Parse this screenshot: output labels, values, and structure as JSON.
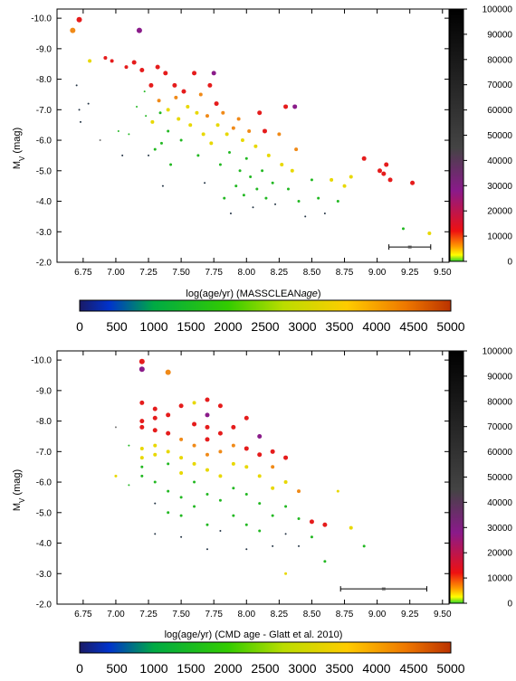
{
  "chart_data": [
    {
      "type": "scatter",
      "xlabel": "log(age/yr) (MASSCLEAN",
      "xlabel_italic": "age",
      "xlabel_close": ")",
      "ylabel": "M",
      "ylabel_sub": "V",
      "ylabel_unit": " (mag)",
      "xlim": [
        6.55,
        9.55
      ],
      "ylim": [
        -2.0,
        -10.3
      ],
      "xticks": [
        "6.75",
        "7.00",
        "7.25",
        "7.50",
        "7.75",
        "8.00",
        "8.25",
        "8.50",
        "8.75",
        "9.00",
        "9.25",
        "9.50"
      ],
      "yticks": [
        "-10.0",
        "-9.0",
        "-8.0",
        "-7.0",
        "-6.0",
        "-5.0",
        "-4.0",
        "-3.0",
        "-2.0"
      ],
      "vertical_colorbar": {
        "range": [
          0,
          100000
        ],
        "ticks": [
          "100000",
          "90000",
          "80000",
          "70000",
          "60000",
          "50000",
          "40000",
          "30000",
          "20000",
          "10000",
          "0"
        ]
      },
      "horizontal_colorbar": {
        "range": [
          0,
          5000
        ],
        "ticks": [
          "0",
          "500",
          "1000",
          "1500",
          "2000",
          "2500",
          "3000",
          "3500",
          "4000",
          "4500",
          "5000"
        ]
      },
      "error_bar": {
        "x": 9.25,
        "y": -2.5,
        "xerr": 0.16
      },
      "points": [
        [
          6.67,
          -9.6,
          "orange",
          3
        ],
        [
          6.72,
          -9.95,
          "red",
          3
        ],
        [
          6.7,
          -7.8,
          "dark",
          1
        ],
        [
          6.72,
          -7.0,
          "dark",
          1
        ],
        [
          6.73,
          -6.6,
          "dark",
          1
        ],
        [
          6.79,
          -7.2,
          "dark",
          1
        ],
        [
          6.8,
          -8.6,
          "yellow",
          2
        ],
        [
          6.88,
          -6.0,
          "gray",
          1
        ],
        [
          6.92,
          -8.7,
          "red",
          2
        ],
        [
          6.97,
          -8.6,
          "red",
          2
        ],
        [
          7.02,
          -6.3,
          "green",
          1
        ],
        [
          7.05,
          -5.5,
          "dark",
          1
        ],
        [
          7.08,
          -8.4,
          "red",
          2
        ],
        [
          7.1,
          -6.2,
          "green",
          1
        ],
        [
          7.14,
          -8.55,
          "red",
          2.5
        ],
        [
          7.16,
          -7.1,
          "green",
          1
        ],
        [
          7.18,
          -9.6,
          "purple",
          3
        ],
        [
          7.2,
          -8.3,
          "red",
          2.5
        ],
        [
          7.22,
          -7.6,
          "green",
          1
        ],
        [
          7.23,
          -6.8,
          "green",
          1
        ],
        [
          7.25,
          -5.5,
          "dark",
          1
        ],
        [
          7.27,
          -7.8,
          "red",
          2.5
        ],
        [
          7.28,
          -6.6,
          "yellow",
          2
        ],
        [
          7.3,
          -5.7,
          "green",
          1.5
        ],
        [
          7.32,
          -8.4,
          "red",
          2.5
        ],
        [
          7.33,
          -7.3,
          "orange",
          2
        ],
        [
          7.34,
          -6.9,
          "green",
          1.5
        ],
        [
          7.35,
          -5.9,
          "green",
          1.5
        ],
        [
          7.36,
          -4.5,
          "dark",
          1
        ],
        [
          7.38,
          -8.2,
          "red",
          2.5
        ],
        [
          7.4,
          -7.0,
          "yellow",
          2
        ],
        [
          7.4,
          -6.3,
          "green",
          1.5
        ],
        [
          7.42,
          -5.2,
          "green",
          1.5
        ],
        [
          7.45,
          -7.8,
          "red",
          2.5
        ],
        [
          7.46,
          -7.4,
          "orange",
          2
        ],
        [
          7.48,
          -6.7,
          "yellow",
          2
        ],
        [
          7.5,
          -6.0,
          "green",
          1.5
        ],
        [
          7.52,
          -7.6,
          "red",
          2.5
        ],
        [
          7.55,
          -7.1,
          "yellow",
          2
        ],
        [
          7.57,
          -6.5,
          "yellow",
          2
        ],
        [
          7.6,
          -8.2,
          "red",
          2.5
        ],
        [
          7.62,
          -6.9,
          "yellow",
          2
        ],
        [
          7.63,
          -5.5,
          "green",
          1.5
        ],
        [
          7.65,
          -7.5,
          "orange",
          2
        ],
        [
          7.67,
          -6.2,
          "yellow",
          2
        ],
        [
          7.68,
          -4.6,
          "dark",
          1
        ],
        [
          7.7,
          -6.8,
          "orange",
          2
        ],
        [
          7.72,
          -7.8,
          "red",
          2.5
        ],
        [
          7.73,
          -5.9,
          "yellow",
          2
        ],
        [
          7.75,
          -8.2,
          "purple",
          2.5
        ],
        [
          7.77,
          -7.2,
          "red",
          2.5
        ],
        [
          7.78,
          -6.5,
          "yellow",
          2
        ],
        [
          7.8,
          -5.2,
          "green",
          1.5
        ],
        [
          7.82,
          -6.9,
          "orange",
          2
        ],
        [
          7.83,
          -4.1,
          "green",
          1.5
        ],
        [
          7.85,
          -6.2,
          "yellow",
          2
        ],
        [
          7.87,
          -5.6,
          "green",
          1.5
        ],
        [
          7.88,
          -3.6,
          "dark",
          1
        ],
        [
          7.9,
          -6.4,
          "orange",
          2
        ],
        [
          7.92,
          -4.5,
          "green",
          1.5
        ],
        [
          7.94,
          -6.7,
          "orange",
          2
        ],
        [
          7.95,
          -5.0,
          "green",
          1.5
        ],
        [
          7.97,
          -6.0,
          "yellow",
          2
        ],
        [
          7.98,
          -4.2,
          "green",
          1.5
        ],
        [
          8.0,
          -5.4,
          "green",
          1.5
        ],
        [
          8.02,
          -6.3,
          "orange",
          2
        ],
        [
          8.03,
          -4.8,
          "green",
          1.5
        ],
        [
          8.05,
          -3.8,
          "dark",
          1
        ],
        [
          8.07,
          -5.8,
          "yellow",
          2
        ],
        [
          8.08,
          -4.4,
          "green",
          1.5
        ],
        [
          8.1,
          -6.9,
          "red",
          2.5
        ],
        [
          8.12,
          -5.0,
          "green",
          1.5
        ],
        [
          8.14,
          -6.3,
          "red",
          2.5
        ],
        [
          8.15,
          -4.1,
          "green",
          1.5
        ],
        [
          8.17,
          -5.5,
          "yellow",
          2
        ],
        [
          8.2,
          -4.6,
          "green",
          1.5
        ],
        [
          8.22,
          -3.9,
          "dark",
          1
        ],
        [
          8.25,
          -6.2,
          "orange",
          2
        ],
        [
          8.27,
          -5.2,
          "yellow",
          2
        ],
        [
          8.3,
          -7.1,
          "red",
          2.5
        ],
        [
          8.32,
          -4.4,
          "green",
          1.5
        ],
        [
          8.35,
          -5.0,
          "yellow",
          2
        ],
        [
          8.37,
          -7.1,
          "purple",
          2.5
        ],
        [
          8.38,
          -5.7,
          "orange",
          2
        ],
        [
          8.4,
          -4.0,
          "green",
          1.5
        ],
        [
          8.45,
          -3.5,
          "dark",
          1
        ],
        [
          8.5,
          -4.7,
          "green",
          1.5
        ],
        [
          8.55,
          -4.1,
          "green",
          1.5
        ],
        [
          8.6,
          -3.6,
          "dark",
          1
        ],
        [
          8.65,
          -4.7,
          "yellow",
          2
        ],
        [
          8.7,
          -4.0,
          "green",
          1.5
        ],
        [
          8.75,
          -4.5,
          "yellow",
          2
        ],
        [
          8.8,
          -4.8,
          "yellow",
          2
        ],
        [
          8.9,
          -5.4,
          "red",
          2.5
        ],
        [
          9.02,
          -5.0,
          "red",
          2.5
        ],
        [
          9.05,
          -4.9,
          "red",
          2.5
        ],
        [
          9.07,
          -5.2,
          "red",
          2.5
        ],
        [
          9.1,
          -4.7,
          "red",
          2.5
        ],
        [
          9.2,
          -3.1,
          "green",
          1.5
        ],
        [
          9.27,
          -4.6,
          "red",
          2.5
        ],
        [
          9.4,
          -2.95,
          "yellow",
          2
        ]
      ]
    },
    {
      "type": "scatter",
      "xlabel": "log(age/yr) (CMD age - Glatt et al. 2010)",
      "ylabel": "M",
      "ylabel_sub": "V",
      "ylabel_unit": " (mag)",
      "xlim": [
        6.55,
        9.55
      ],
      "ylim": [
        -2.0,
        -10.3
      ],
      "xticks": [
        "6.75",
        "7.00",
        "7.25",
        "7.50",
        "7.75",
        "8.00",
        "8.25",
        "8.50",
        "8.75",
        "9.00",
        "9.25",
        "9.50"
      ],
      "yticks": [
        "-10.0",
        "-9.0",
        "-8.0",
        "-7.0",
        "-6.0",
        "-5.0",
        "-4.0",
        "-3.0",
        "-2.0"
      ],
      "vertical_colorbar": {
        "range": [
          0,
          100000
        ],
        "ticks": [
          "100000",
          "90000",
          "80000",
          "70000",
          "60000",
          "50000",
          "40000",
          "30000",
          "20000",
          "10000",
          "0"
        ]
      },
      "horizontal_colorbar": {
        "range": [
          0,
          5000
        ],
        "ticks": [
          "0",
          "500",
          "1000",
          "1500",
          "2000",
          "2500",
          "3000",
          "3500",
          "4000",
          "4500",
          "5000"
        ]
      },
      "error_bar": {
        "x": 9.05,
        "y": -2.5,
        "xerr": 0.33
      },
      "points": [
        [
          7.0,
          -7.8,
          "gray",
          1
        ],
        [
          7.0,
          -6.2,
          "yellow",
          1.5
        ],
        [
          7.1,
          -7.2,
          "green",
          1
        ],
        [
          7.1,
          -5.9,
          "green",
          1
        ],
        [
          7.2,
          -9.95,
          "red",
          3
        ],
        [
          7.2,
          -9.7,
          "purple",
          3
        ],
        [
          7.2,
          -8.6,
          "red",
          2.5
        ],
        [
          7.2,
          -8.0,
          "red",
          2.5
        ],
        [
          7.2,
          -7.8,
          "red",
          2.5
        ],
        [
          7.2,
          -7.1,
          "yellow",
          2
        ],
        [
          7.2,
          -6.8,
          "yellow",
          2
        ],
        [
          7.2,
          -6.5,
          "green",
          1.5
        ],
        [
          7.2,
          -6.2,
          "green",
          1.5
        ],
        [
          7.3,
          -8.4,
          "red",
          2.5
        ],
        [
          7.3,
          -8.1,
          "red",
          2.5
        ],
        [
          7.3,
          -7.7,
          "red",
          2.5
        ],
        [
          7.3,
          -7.2,
          "yellow",
          2
        ],
        [
          7.3,
          -6.9,
          "yellow",
          2
        ],
        [
          7.3,
          -6.0,
          "green",
          1.5
        ],
        [
          7.3,
          -5.3,
          "dark",
          1
        ],
        [
          7.3,
          -4.3,
          "dark",
          1
        ],
        [
          7.4,
          -9.6,
          "orange",
          3
        ],
        [
          7.4,
          -8.2,
          "red",
          2.5
        ],
        [
          7.4,
          -7.6,
          "red",
          2.5
        ],
        [
          7.4,
          -7.0,
          "yellow",
          2
        ],
        [
          7.4,
          -6.6,
          "green",
          1.5
        ],
        [
          7.4,
          -5.7,
          "green",
          1.5
        ],
        [
          7.4,
          -5.0,
          "green",
          1.5
        ],
        [
          7.5,
          -8.5,
          "red",
          2.5
        ],
        [
          7.5,
          -7.4,
          "orange",
          2
        ],
        [
          7.5,
          -6.8,
          "yellow",
          2
        ],
        [
          7.5,
          -6.3,
          "yellow",
          2
        ],
        [
          7.5,
          -5.5,
          "green",
          1.5
        ],
        [
          7.5,
          -4.9,
          "green",
          1.5
        ],
        [
          7.5,
          -4.2,
          "dark",
          1
        ],
        [
          7.6,
          -8.6,
          "yellow",
          2
        ],
        [
          7.6,
          -7.9,
          "red",
          2.5
        ],
        [
          7.6,
          -7.2,
          "orange",
          2
        ],
        [
          7.6,
          -6.6,
          "yellow",
          2
        ],
        [
          7.6,
          -6.0,
          "green",
          1.5
        ],
        [
          7.6,
          -5.2,
          "green",
          1.5
        ],
        [
          7.7,
          -8.7,
          "red",
          2.5
        ],
        [
          7.7,
          -8.2,
          "purple",
          2.5
        ],
        [
          7.7,
          -7.8,
          "red",
          2.5
        ],
        [
          7.7,
          -7.4,
          "red",
          2.5
        ],
        [
          7.7,
          -6.9,
          "orange",
          2
        ],
        [
          7.7,
          -6.4,
          "yellow",
          2
        ],
        [
          7.7,
          -5.6,
          "green",
          1.5
        ],
        [
          7.7,
          -4.6,
          "green",
          1.5
        ],
        [
          7.7,
          -3.8,
          "dark",
          1
        ],
        [
          7.8,
          -8.5,
          "red",
          2.5
        ],
        [
          7.8,
          -7.6,
          "red",
          2.5
        ],
        [
          7.8,
          -7.0,
          "orange",
          2
        ],
        [
          7.8,
          -6.2,
          "yellow",
          2
        ],
        [
          7.8,
          -5.4,
          "green",
          1.5
        ],
        [
          7.8,
          -4.4,
          "dark",
          1
        ],
        [
          7.9,
          -7.8,
          "red",
          2.5
        ],
        [
          7.9,
          -7.2,
          "orange",
          2
        ],
        [
          7.9,
          -6.6,
          "yellow",
          2
        ],
        [
          7.9,
          -5.8,
          "green",
          1.5
        ],
        [
          7.9,
          -4.9,
          "green",
          1.5
        ],
        [
          8.0,
          -8.1,
          "red",
          2.5
        ],
        [
          8.0,
          -7.1,
          "red",
          2.5
        ],
        [
          8.0,
          -6.5,
          "yellow",
          2
        ],
        [
          8.0,
          -5.6,
          "green",
          1.5
        ],
        [
          8.0,
          -4.6,
          "green",
          1.5
        ],
        [
          8.0,
          -3.8,
          "dark",
          1
        ],
        [
          8.1,
          -7.5,
          "purple",
          2.5
        ],
        [
          8.1,
          -6.9,
          "red",
          2.5
        ],
        [
          8.1,
          -6.2,
          "yellow",
          2
        ],
        [
          8.1,
          -5.3,
          "green",
          1.5
        ],
        [
          8.1,
          -4.4,
          "green",
          1.5
        ],
        [
          8.2,
          -7.0,
          "red",
          2.5
        ],
        [
          8.2,
          -6.5,
          "orange",
          2
        ],
        [
          8.2,
          -5.8,
          "yellow",
          2
        ],
        [
          8.2,
          -4.9,
          "green",
          1.5
        ],
        [
          8.2,
          -3.9,
          "dark",
          1
        ],
        [
          8.3,
          -6.8,
          "red",
          2.5
        ],
        [
          8.3,
          -6.0,
          "yellow",
          2
        ],
        [
          8.3,
          -5.2,
          "green",
          1.5
        ],
        [
          8.3,
          -4.3,
          "dark",
          1
        ],
        [
          8.3,
          -3.0,
          "yellow",
          1.5
        ],
        [
          8.4,
          -5.7,
          "orange",
          2
        ],
        [
          8.4,
          -4.8,
          "green",
          1.5
        ],
        [
          8.4,
          -3.9,
          "dark",
          1
        ],
        [
          8.5,
          -4.7,
          "red",
          2.5
        ],
        [
          8.5,
          -4.2,
          "green",
          1.5
        ],
        [
          8.6,
          -4.6,
          "red",
          2.5
        ],
        [
          8.6,
          -3.4,
          "green",
          1.5
        ],
        [
          8.7,
          -5.7,
          "yellow",
          1.5
        ],
        [
          8.8,
          -4.5,
          "yellow",
          2
        ],
        [
          8.9,
          -3.9,
          "green",
          1.5
        ]
      ]
    }
  ]
}
